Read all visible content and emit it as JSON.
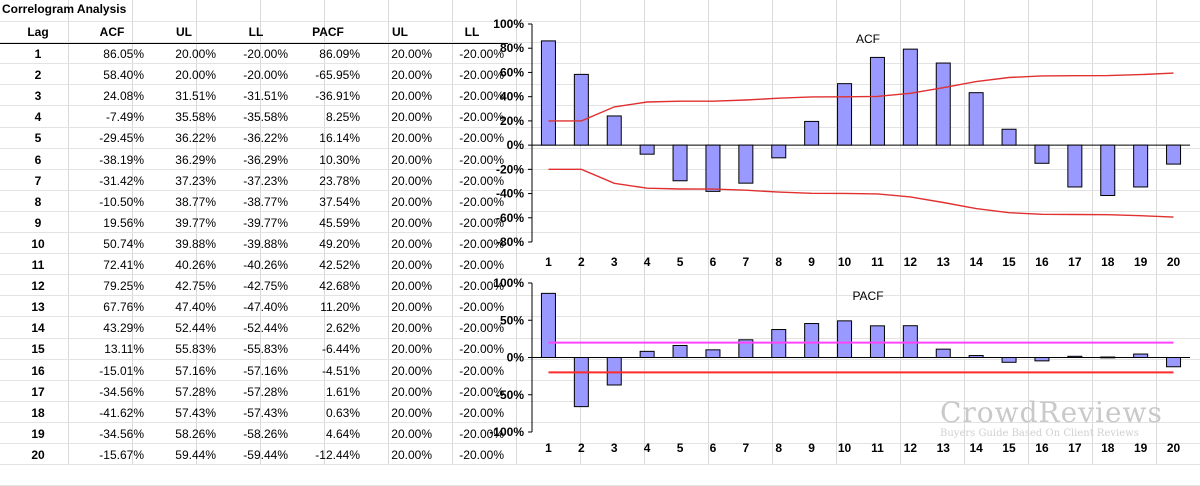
{
  "table": {
    "title": "Correlogram Analysis",
    "headers": [
      "Lag",
      "ACF",
      "UL",
      "LL",
      "PACF",
      "UL",
      "LL"
    ],
    "rows": [
      [
        "1",
        "86.05%",
        "20.00%",
        "-20.00%",
        "86.09%",
        "20.00%",
        "-20.00%"
      ],
      [
        "2",
        "58.40%",
        "20.00%",
        "-20.00%",
        "-65.95%",
        "20.00%",
        "-20.00%"
      ],
      [
        "3",
        "24.08%",
        "31.51%",
        "-31.51%",
        "-36.91%",
        "20.00%",
        "-20.00%"
      ],
      [
        "4",
        "-7.49%",
        "35.58%",
        "-35.58%",
        "8.25%",
        "20.00%",
        "-20.00%"
      ],
      [
        "5",
        "-29.45%",
        "36.22%",
        "-36.22%",
        "16.14%",
        "20.00%",
        "-20.00%"
      ],
      [
        "6",
        "-38.19%",
        "36.29%",
        "-36.29%",
        "10.30%",
        "20.00%",
        "-20.00%"
      ],
      [
        "7",
        "-31.42%",
        "37.23%",
        "-37.23%",
        "23.78%",
        "20.00%",
        "-20.00%"
      ],
      [
        "8",
        "-10.50%",
        "38.77%",
        "-38.77%",
        "37.54%",
        "20.00%",
        "-20.00%"
      ],
      [
        "9",
        "19.56%",
        "39.77%",
        "-39.77%",
        "45.59%",
        "20.00%",
        "-20.00%"
      ],
      [
        "10",
        "50.74%",
        "39.88%",
        "-39.88%",
        "49.20%",
        "20.00%",
        "-20.00%"
      ],
      [
        "11",
        "72.41%",
        "40.26%",
        "-40.26%",
        "42.52%",
        "20.00%",
        "-20.00%"
      ],
      [
        "12",
        "79.25%",
        "42.75%",
        "-42.75%",
        "42.68%",
        "20.00%",
        "-20.00%"
      ],
      [
        "13",
        "67.76%",
        "47.40%",
        "-47.40%",
        "11.20%",
        "20.00%",
        "-20.00%"
      ],
      [
        "14",
        "43.29%",
        "52.44%",
        "-52.44%",
        "2.62%",
        "20.00%",
        "-20.00%"
      ],
      [
        "15",
        "13.11%",
        "55.83%",
        "-55.83%",
        "-6.44%",
        "20.00%",
        "-20.00%"
      ],
      [
        "16",
        "-15.01%",
        "57.16%",
        "-57.16%",
        "-4.51%",
        "20.00%",
        "-20.00%"
      ],
      [
        "17",
        "-34.56%",
        "57.28%",
        "-57.28%",
        "1.61%",
        "20.00%",
        "-20.00%"
      ],
      [
        "18",
        "-41.62%",
        "57.43%",
        "-57.43%",
        "0.63%",
        "20.00%",
        "-20.00%"
      ],
      [
        "19",
        "-34.56%",
        "58.26%",
        "-58.26%",
        "4.64%",
        "20.00%",
        "-20.00%"
      ],
      [
        "20",
        "-15.67%",
        "59.44%",
        "-59.44%",
        "-12.44%",
        "20.00%",
        "-20.00%"
      ]
    ]
  },
  "watermark": {
    "main": "CrowdReviews",
    "sub": "Buyers Guide Based On Client Reviews"
  },
  "colors": {
    "bar": "#9999ff",
    "bar_edge": "#000000",
    "acf_limit": "#e03030",
    "pacf_ul": "#ff44ff",
    "pacf_ll": "#ff2a2a"
  },
  "chart_data": [
    {
      "type": "bar",
      "title": "ACF",
      "categories": [
        "1",
        "2",
        "3",
        "4",
        "5",
        "6",
        "7",
        "8",
        "9",
        "10",
        "11",
        "12",
        "13",
        "14",
        "15",
        "16",
        "17",
        "18",
        "19",
        "20"
      ],
      "series": [
        {
          "values": [
            86.05,
            58.4,
            24.08,
            -7.49,
            -29.45,
            -38.19,
            -31.42,
            -10.5,
            19.56,
            50.74,
            72.41,
            79.25,
            67.76,
            43.29,
            13.11,
            -15.01,
            -34.56,
            -41.62,
            -34.56,
            -15.67
          ]
        },
        {
          "type": "line",
          "values": [
            20,
            20,
            31.51,
            35.58,
            36.22,
            36.29,
            37.23,
            38.77,
            39.77,
            39.88,
            40.26,
            42.75,
            47.4,
            52.44,
            55.83,
            57.16,
            57.28,
            57.43,
            58.26,
            59.44
          ]
        },
        {
          "type": "line",
          "values": [
            -20,
            -20,
            -31.51,
            -35.58,
            -36.22,
            -36.29,
            -37.23,
            -38.77,
            -39.77,
            -39.88,
            -40.26,
            -42.75,
            -47.4,
            -52.44,
            -55.83,
            -57.16,
            -57.28,
            -57.43,
            -58.26,
            -59.44
          ]
        }
      ],
      "ylim": [
        -80,
        100
      ],
      "yticks": [
        "100%",
        "80%",
        "60%",
        "40%",
        "20%",
        "0%",
        "-20%",
        "-40%",
        "-60%",
        "-80%"
      ],
      "ytick_values": [
        100,
        80,
        60,
        40,
        20,
        0,
        -20,
        -40,
        -60,
        -80
      ],
      "legend": "none",
      "grid": false
    },
    {
      "type": "bar",
      "title": "PACF",
      "categories": [
        "1",
        "2",
        "3",
        "4",
        "5",
        "6",
        "7",
        "8",
        "9",
        "10",
        "11",
        "12",
        "13",
        "14",
        "15",
        "16",
        "17",
        "18",
        "19",
        "20"
      ],
      "series": [
        {
          "values": [
            86.09,
            -65.95,
            -36.91,
            8.25,
            16.14,
            10.3,
            23.78,
            37.54,
            45.59,
            49.2,
            42.52,
            42.68,
            11.2,
            2.62,
            -6.44,
            -4.51,
            1.61,
            0.63,
            4.64,
            -12.44
          ]
        },
        {
          "type": "line",
          "values": [
            20,
            20,
            20,
            20,
            20,
            20,
            20,
            20,
            20,
            20,
            20,
            20,
            20,
            20,
            20,
            20,
            20,
            20,
            20,
            20
          ]
        },
        {
          "type": "line",
          "values": [
            -20,
            -20,
            -20,
            -20,
            -20,
            -20,
            -20,
            -20,
            -20,
            -20,
            -20,
            -20,
            -20,
            -20,
            -20,
            -20,
            -20,
            -20,
            -20,
            -20
          ]
        }
      ],
      "ylim": [
        -100,
        100
      ],
      "yticks": [
        "100%",
        "50%",
        "0%",
        "-50%",
        "-100%"
      ],
      "ytick_values": [
        100,
        50,
        0,
        -50,
        -100
      ],
      "legend": "none",
      "grid": false
    }
  ]
}
